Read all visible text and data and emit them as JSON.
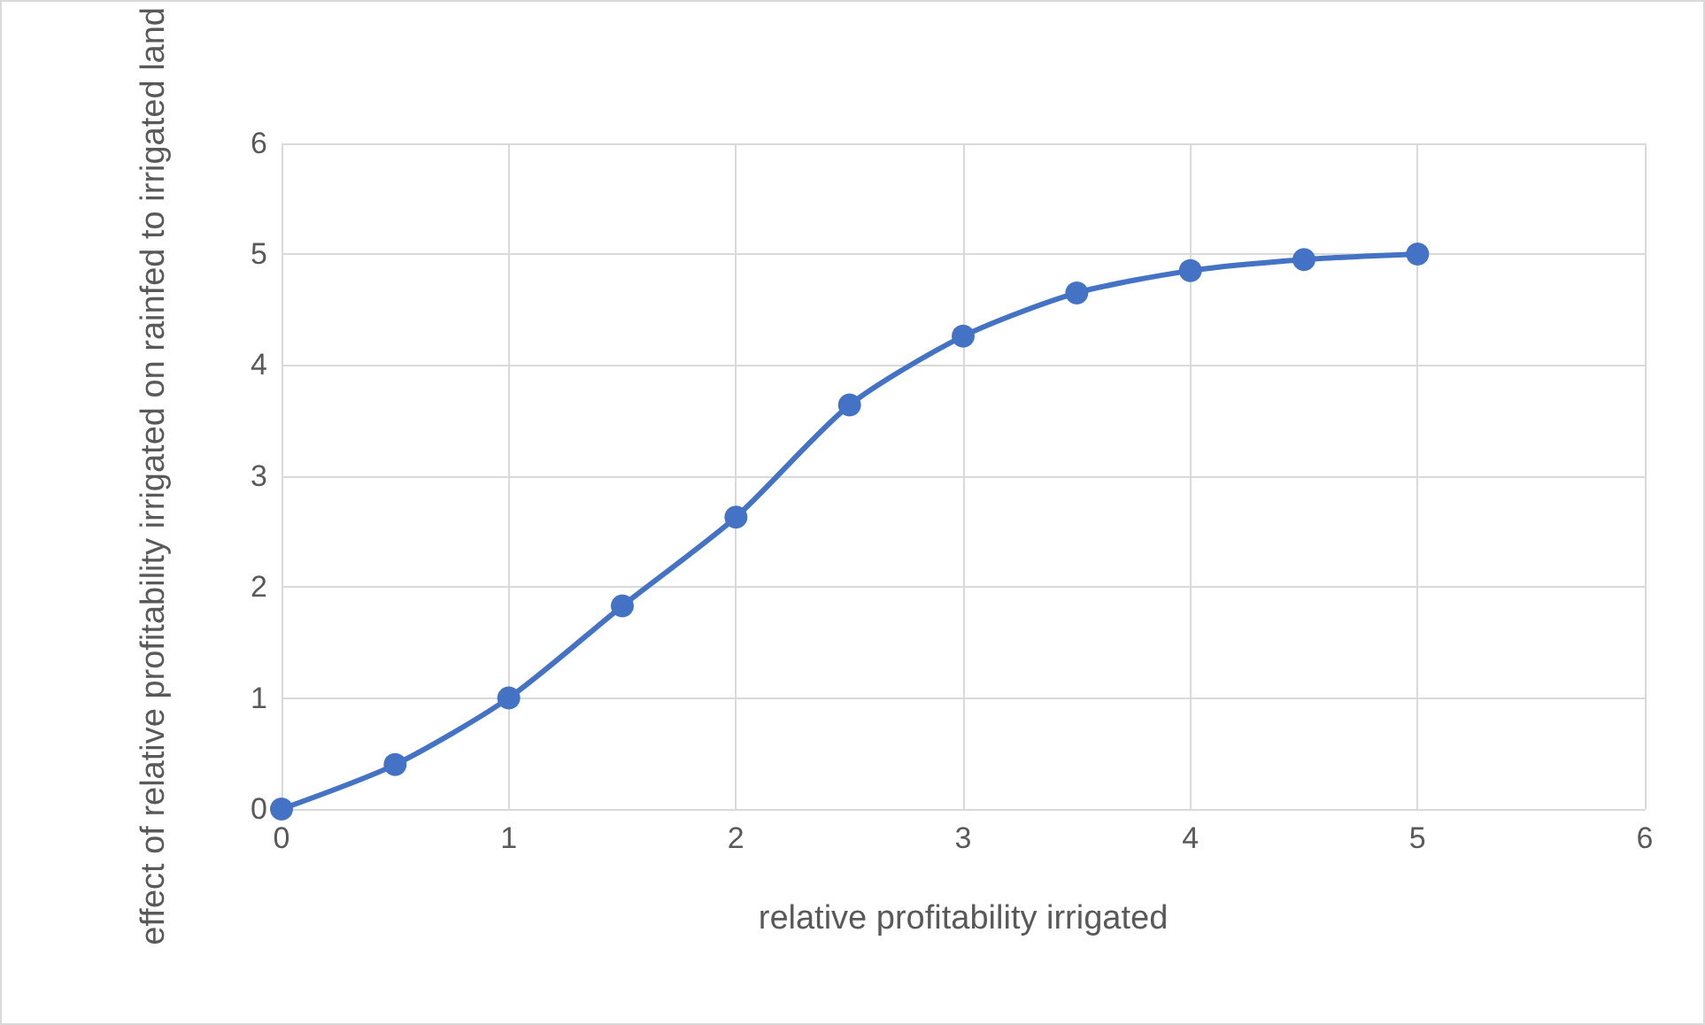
{
  "chart_data": {
    "type": "line",
    "xlabel": "relative profitability irrigated",
    "ylabel": "effect of relative profitability irrigated on rainfed to irrigated land",
    "x": [
      0,
      0.5,
      1,
      1.5,
      2,
      2.5,
      3,
      3.5,
      4,
      4.5,
      5
    ],
    "series": [
      {
        "color": "#4472c4",
        "values": [
          0,
          0.4,
          1.0,
          1.83,
          2.63,
          3.64,
          4.26,
          4.65,
          4.85,
          4.95,
          5.0
        ]
      }
    ],
    "xlim": [
      0,
      6
    ],
    "xticks": [
      0,
      1,
      2,
      3,
      4,
      5,
      6
    ],
    "ylim": [
      0,
      6
    ],
    "yticks": [
      0,
      1,
      2,
      3,
      4,
      5,
      6
    ],
    "grid": true,
    "marker": "circle",
    "line_style": "solid"
  }
}
